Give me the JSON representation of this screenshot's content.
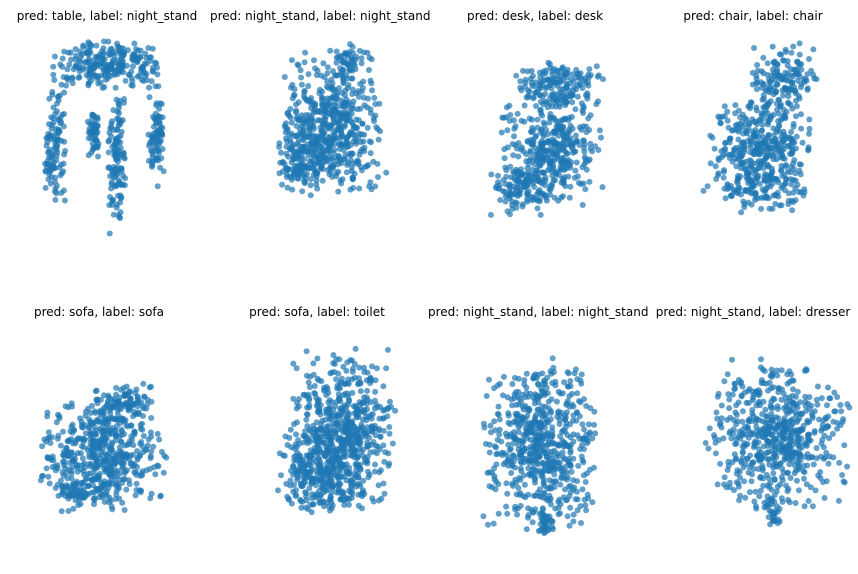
{
  "chart_data": {
    "type": "scatter",
    "point_color": "#1f77b4",
    "panels": [
      {
        "title": "pred: table, label: night_stand",
        "shape": "table"
      },
      {
        "title": "pred: night_stand, label: night_stand",
        "shape": "blob_tilted"
      },
      {
        "title": "pred: desk, label: desk",
        "shape": "desk"
      },
      {
        "title": "pred: chair, label: chair",
        "shape": "chair"
      },
      {
        "title": "pred: sofa, label: sofa",
        "shape": "sofa"
      },
      {
        "title": "pred: sofa, label: toilet",
        "shape": "toilet"
      },
      {
        "title": "pred: night_stand, label: night_stand",
        "shape": "box"
      },
      {
        "title": "pred: night_stand, label: dresser",
        "shape": "box2"
      }
    ]
  }
}
